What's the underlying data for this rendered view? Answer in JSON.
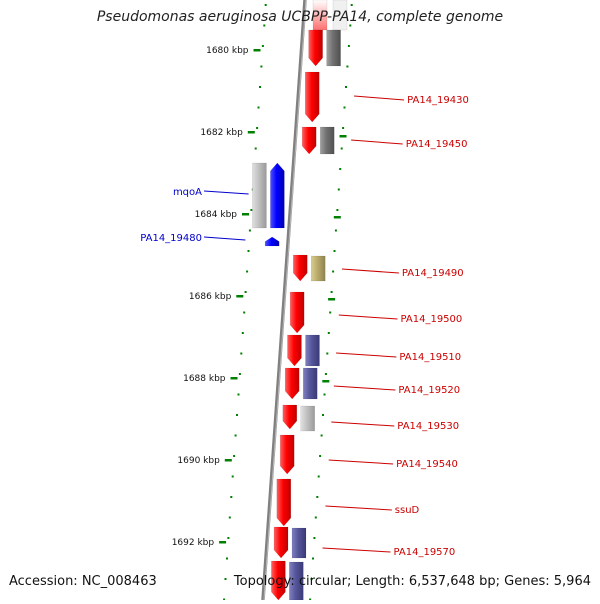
{
  "title": "Pseudomonas aeruginosa UCBPP-PA14, complete genome",
  "footer": {
    "accession": "Accession: NC_008463",
    "topology": "Topology: circular; Length: 6,537,648 bp; Genes: 5,964"
  },
  "colors": {
    "plus_strand_gene": "#ff0000",
    "minus_strand_gene": "#0000ff",
    "cds_dark": "#707070",
    "cds_light": "#c0c0c0",
    "cds_purple": "#55559a",
    "cds_tan": "#b8aa6a",
    "scale_ticks": "#008000",
    "backbone": "#808080"
  },
  "scale_labels": [
    "1680 kbp",
    "1682 kbp",
    "1684 kbp",
    "1686 kbp",
    "1688 kbp",
    "1690 kbp",
    "1692 kbp"
  ],
  "gene_labels_right": [
    "PA14_19430",
    "PA14_19450",
    "PA14_19490",
    "PA14_19500",
    "PA14_19510",
    "PA14_19520",
    "PA14_19530",
    "PA14_19540",
    "ssuD",
    "PA14_19570"
  ],
  "gene_labels_left": [
    "mqoA",
    "PA14_19480"
  ]
}
